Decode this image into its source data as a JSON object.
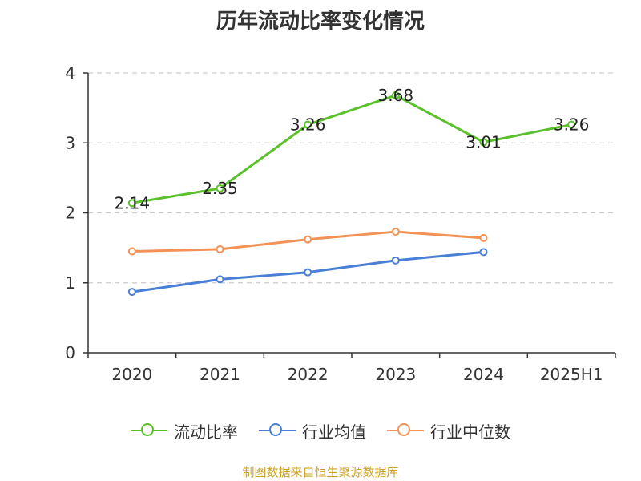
{
  "title": "历年流动比率变化情况",
  "source": "制图数据来自恒生聚源数据库",
  "chart_data": {
    "type": "line",
    "categories": [
      "2020",
      "2021",
      "2022",
      "2023",
      "2024",
      "2025H1"
    ],
    "ylim": [
      0,
      4
    ],
    "yticks": [
      0,
      1,
      2,
      3,
      4
    ],
    "grid": true,
    "legend_position": "bottom",
    "series": [
      {
        "name": "流动比率",
        "color": "#5ac12b",
        "values": [
          2.14,
          2.35,
          3.26,
          3.68,
          3.01,
          3.26
        ],
        "labels": [
          "2.14",
          "2.35",
          "3.26",
          "3.68",
          "3.01",
          "3.26"
        ]
      },
      {
        "name": "行业均值",
        "color": "#4a7fd6",
        "values": [
          0.87,
          1.05,
          1.15,
          1.32,
          1.44,
          null
        ]
      },
      {
        "name": "行业中位数",
        "color": "#f39257",
        "values": [
          1.45,
          1.48,
          1.62,
          1.73,
          1.64,
          null
        ]
      }
    ]
  }
}
